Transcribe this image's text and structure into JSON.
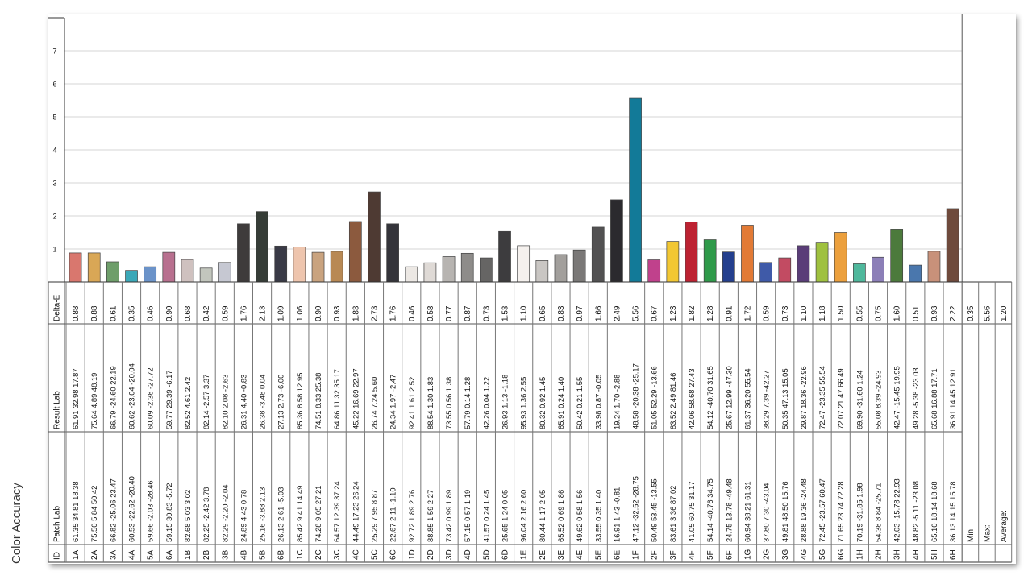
{
  "side_title": "Color Accuracy",
  "chart_data": {
    "type": "bar",
    "y_ticks": [
      1,
      2,
      3,
      4,
      5,
      6,
      7
    ],
    "ylim": [
      0,
      8
    ],
    "grid": true,
    "row_labels": {
      "id": "ID",
      "patch": "Patch Lab",
      "result": "Result Lab",
      "de": "Delta-E"
    },
    "summary": [
      {
        "label": "Min:",
        "value": "0.35"
      },
      {
        "label": "Max:",
        "value": "5.56"
      },
      {
        "label": "Average:",
        "value": "1.20"
      }
    ],
    "patches": [
      {
        "id": "1A",
        "patch": "61.35  34.81  18.38",
        "result": "61.91  32.98  17.87",
        "de": 0.88,
        "color": "#d9776e"
      },
      {
        "id": "2A",
        "patch": "75.50  5.84  50.42",
        "result": "75.64  4.89  48.19",
        "de": 0.88,
        "color": "#d9a756"
      },
      {
        "id": "3A",
        "patch": "66.82 -25.06  23.47",
        "result": "66.79 -24.60  22.19",
        "de": 0.61,
        "color": "#6e9e6a"
      },
      {
        "id": "4A",
        "patch": "60.53 -22.62 -20.40",
        "result": "60.62 -23.04 -20.04",
        "de": 0.35,
        "color": "#3ba8b8"
      },
      {
        "id": "5A",
        "patch": "59.66 -2.03 -28.46",
        "result": "60.09 -2.38 -27.72",
        "de": 0.46,
        "color": "#6b93c9"
      },
      {
        "id": "6A",
        "patch": "59.15  30.83 -5.72",
        "result": "59.77  29.39 -6.17",
        "de": 0.9,
        "color": "#b8708f"
      },
      {
        "id": "1B",
        "patch": "82.68  5.03  3.02",
        "result": "82.52  4.61  2.42",
        "de": 0.68,
        "color": "#cfc1bf"
      },
      {
        "id": "2B",
        "patch": "82.25 -2.42  3.78",
        "result": "82.14 -2.57  3.37",
        "de": 0.42,
        "color": "#c2c6bd"
      },
      {
        "id": "3B",
        "patch": "82.29 -2.20 -2.04",
        "result": "82.10  2.08 -2.63",
        "de": 0.59,
        "color": "#c6c8d2"
      },
      {
        "id": "4B",
        "patch": "24.89  4.43  0.78",
        "result": "26.31  4.40 -0.83",
        "de": 1.76,
        "color": "#3e3b3b"
      },
      {
        "id": "5B",
        "patch": "25.16 -3.88  2.13",
        "result": "26.38 -3.48  0.04",
        "de": 2.13,
        "color": "#363d37"
      },
      {
        "id": "6B",
        "patch": "26.13  2.61 -5.03",
        "result": "27.13  2.73 -6.00",
        "de": 1.09,
        "color": "#393a46"
      },
      {
        "id": "1C",
        "patch": "85.42  9.41  14.49",
        "result": "85.36  8.58  12.95",
        "de": 1.06,
        "color": "#eec5ae"
      },
      {
        "id": "2C",
        "patch": "74.28  9.05  27.21",
        "result": "74.51  8.33  25.38",
        "de": 0.9,
        "color": "#c9a37f"
      },
      {
        "id": "3C",
        "patch": "64.57  12.39  37.24",
        "result": "64.86  11.32  35.17",
        "de": 0.93,
        "color": "#b88954"
      },
      {
        "id": "4C",
        "patch": "44.49  17.23  26.24",
        "result": "45.22  16.69  22.97",
        "de": 1.83,
        "color": "#8c5a3e"
      },
      {
        "id": "5C",
        "patch": "25.29  7.95  8.87",
        "result": "26.74  7.24  5.60",
        "de": 2.73,
        "color": "#4e3a33"
      },
      {
        "id": "6C",
        "patch": "22.67  2.11 -1.10",
        "result": "24.34  1.97 -2.47",
        "de": 1.76,
        "color": "#34343a"
      },
      {
        "id": "1D",
        "patch": "92.72  1.89  2.76",
        "result": "92.41  1.61  2.52",
        "de": 0.46,
        "color": "#ece8e4"
      },
      {
        "id": "2D",
        "patch": "88.85  1.59  2.27",
        "result": "88.54  1.30  1.83",
        "de": 0.58,
        "color": "#dfdad6"
      },
      {
        "id": "3D",
        "patch": "73.42  0.99  1.89",
        "result": "73.55  0.56  1.38",
        "de": 0.77,
        "color": "#b7b4b1"
      },
      {
        "id": "4D",
        "patch": "57.15  0.57  1.19",
        "result": "57.79  0.14  1.28",
        "de": 0.87,
        "color": "#8e8c8a"
      },
      {
        "id": "5D",
        "patch": "41.57  0.24  1.45",
        "result": "42.26  0.04  1.22",
        "de": 0.73,
        "color": "#666564"
      },
      {
        "id": "6D",
        "patch": "25.65  1.24  0.05",
        "result": "26.93  1.13 -1.18",
        "de": 1.53,
        "color": "#3d3c3e"
      },
      {
        "id": "1E",
        "patch": "96.04  2.16  2.60",
        "result": "95.93  1.36  2.55",
        "de": 1.1,
        "color": "#f5f1ee"
      },
      {
        "id": "2E",
        "patch": "80.44  1.17  2.05",
        "result": "80.32  0.92  1.45",
        "de": 0.65,
        "color": "#c9c6c3"
      },
      {
        "id": "3E",
        "patch": "65.52  0.69  1.86",
        "result": "65.91  0.24  1.40",
        "de": 0.83,
        "color": "#a29f9c"
      },
      {
        "id": "4E",
        "patch": "49.62  0.58  1.56",
        "result": "50.42  0.21  1.55",
        "de": 0.97,
        "color": "#7a7877"
      },
      {
        "id": "5E",
        "patch": "33.55  0.35  1.40",
        "result": "33.98  0.87 -0.05",
        "de": 1.66,
        "color": "#525152"
      },
      {
        "id": "6E",
        "patch": "16.91  1.43 -0.81",
        "result": "19.24  1.70 -2.88",
        "de": 2.49,
        "color": "#2b2a2e"
      },
      {
        "id": "1F",
        "patch": "47.12 -32.52 -28.75",
        "result": "48.58 -20.38 -25.17",
        "de": 5.56,
        "color": "#127a98"
      },
      {
        "id": "2F",
        "patch": "50.49  53.45 -13.55",
        "result": "51.05  52.29 -13.66",
        "de": 0.67,
        "color": "#c0418c"
      },
      {
        "id": "3F",
        "patch": "83.61  3.36  87.02",
        "result": "83.52  2.49  81.46",
        "de": 1.23,
        "color": "#f2c733"
      },
      {
        "id": "4F",
        "patch": "41.05  60.75  31.17",
        "result": "42.06  58.68  27.43",
        "de": 1.82,
        "color": "#bd2232"
      },
      {
        "id": "5F",
        "patch": "54.14 -40.76  34.75",
        "result": "54.12 -40.70  31.65",
        "de": 1.28,
        "color": "#2f9a4a"
      },
      {
        "id": "6F",
        "patch": "24.75  13.78 -49.48",
        "result": "25.67  12.99 -47.30",
        "de": 0.91,
        "color": "#243f8e"
      },
      {
        "id": "1G",
        "patch": "60.94  38.21  61.31",
        "result": "61.37  36.20  55.54",
        "de": 1.72,
        "color": "#e27a35"
      },
      {
        "id": "2G",
        "patch": "37.80  7.30 -43.04",
        "result": "38.29  7.39 -42.27",
        "de": 0.59,
        "color": "#3f5aa8"
      },
      {
        "id": "3G",
        "patch": "49.81  48.50  15.76",
        "result": "50.35  47.13  15.05",
        "de": 0.73,
        "color": "#c24b62"
      },
      {
        "id": "4G",
        "patch": "28.88  19.36 -24.48",
        "result": "29.87  18.36 -22.96",
        "de": 1.1,
        "color": "#5a3d78"
      },
      {
        "id": "5G",
        "patch": "72.45 -23.57  60.47",
        "result": "72.47 -23.35  55.54",
        "de": 1.18,
        "color": "#9fc13f"
      },
      {
        "id": "6G",
        "patch": "71.65  23.74  72.28",
        "result": "72.07  21.47  66.49",
        "de": 1.5,
        "color": "#eca03d"
      },
      {
        "id": "1H",
        "patch": "70.19 -31.85  1.98",
        "result": "69.90 -31.60  1.24",
        "de": 0.55,
        "color": "#4fb89c"
      },
      {
        "id": "2H",
        "patch": "54.38  8.84 -25.71",
        "result": "55.08  8.39 -24.93",
        "de": 0.75,
        "color": "#8c7fb8"
      },
      {
        "id": "3H",
        "patch": "42.03 -15.78  22.93",
        "result": "42.47 -15.45  19.95",
        "de": 1.6,
        "color": "#4c7a3c"
      },
      {
        "id": "4H",
        "patch": "48.82 -5.11 -23.08",
        "result": "49.28 -5.38 -23.03",
        "de": 0.51,
        "color": "#4a77ad"
      },
      {
        "id": "5H",
        "patch": "65.10  18.14  18.68",
        "result": "65.68  16.88  17.71",
        "de": 0.93,
        "color": "#c8917a"
      },
      {
        "id": "6H",
        "patch": "36.13  14.15  15.78",
        "result": "36.91  14.45  12.91",
        "de": 2.22,
        "color": "#6e4a3c"
      }
    ]
  }
}
